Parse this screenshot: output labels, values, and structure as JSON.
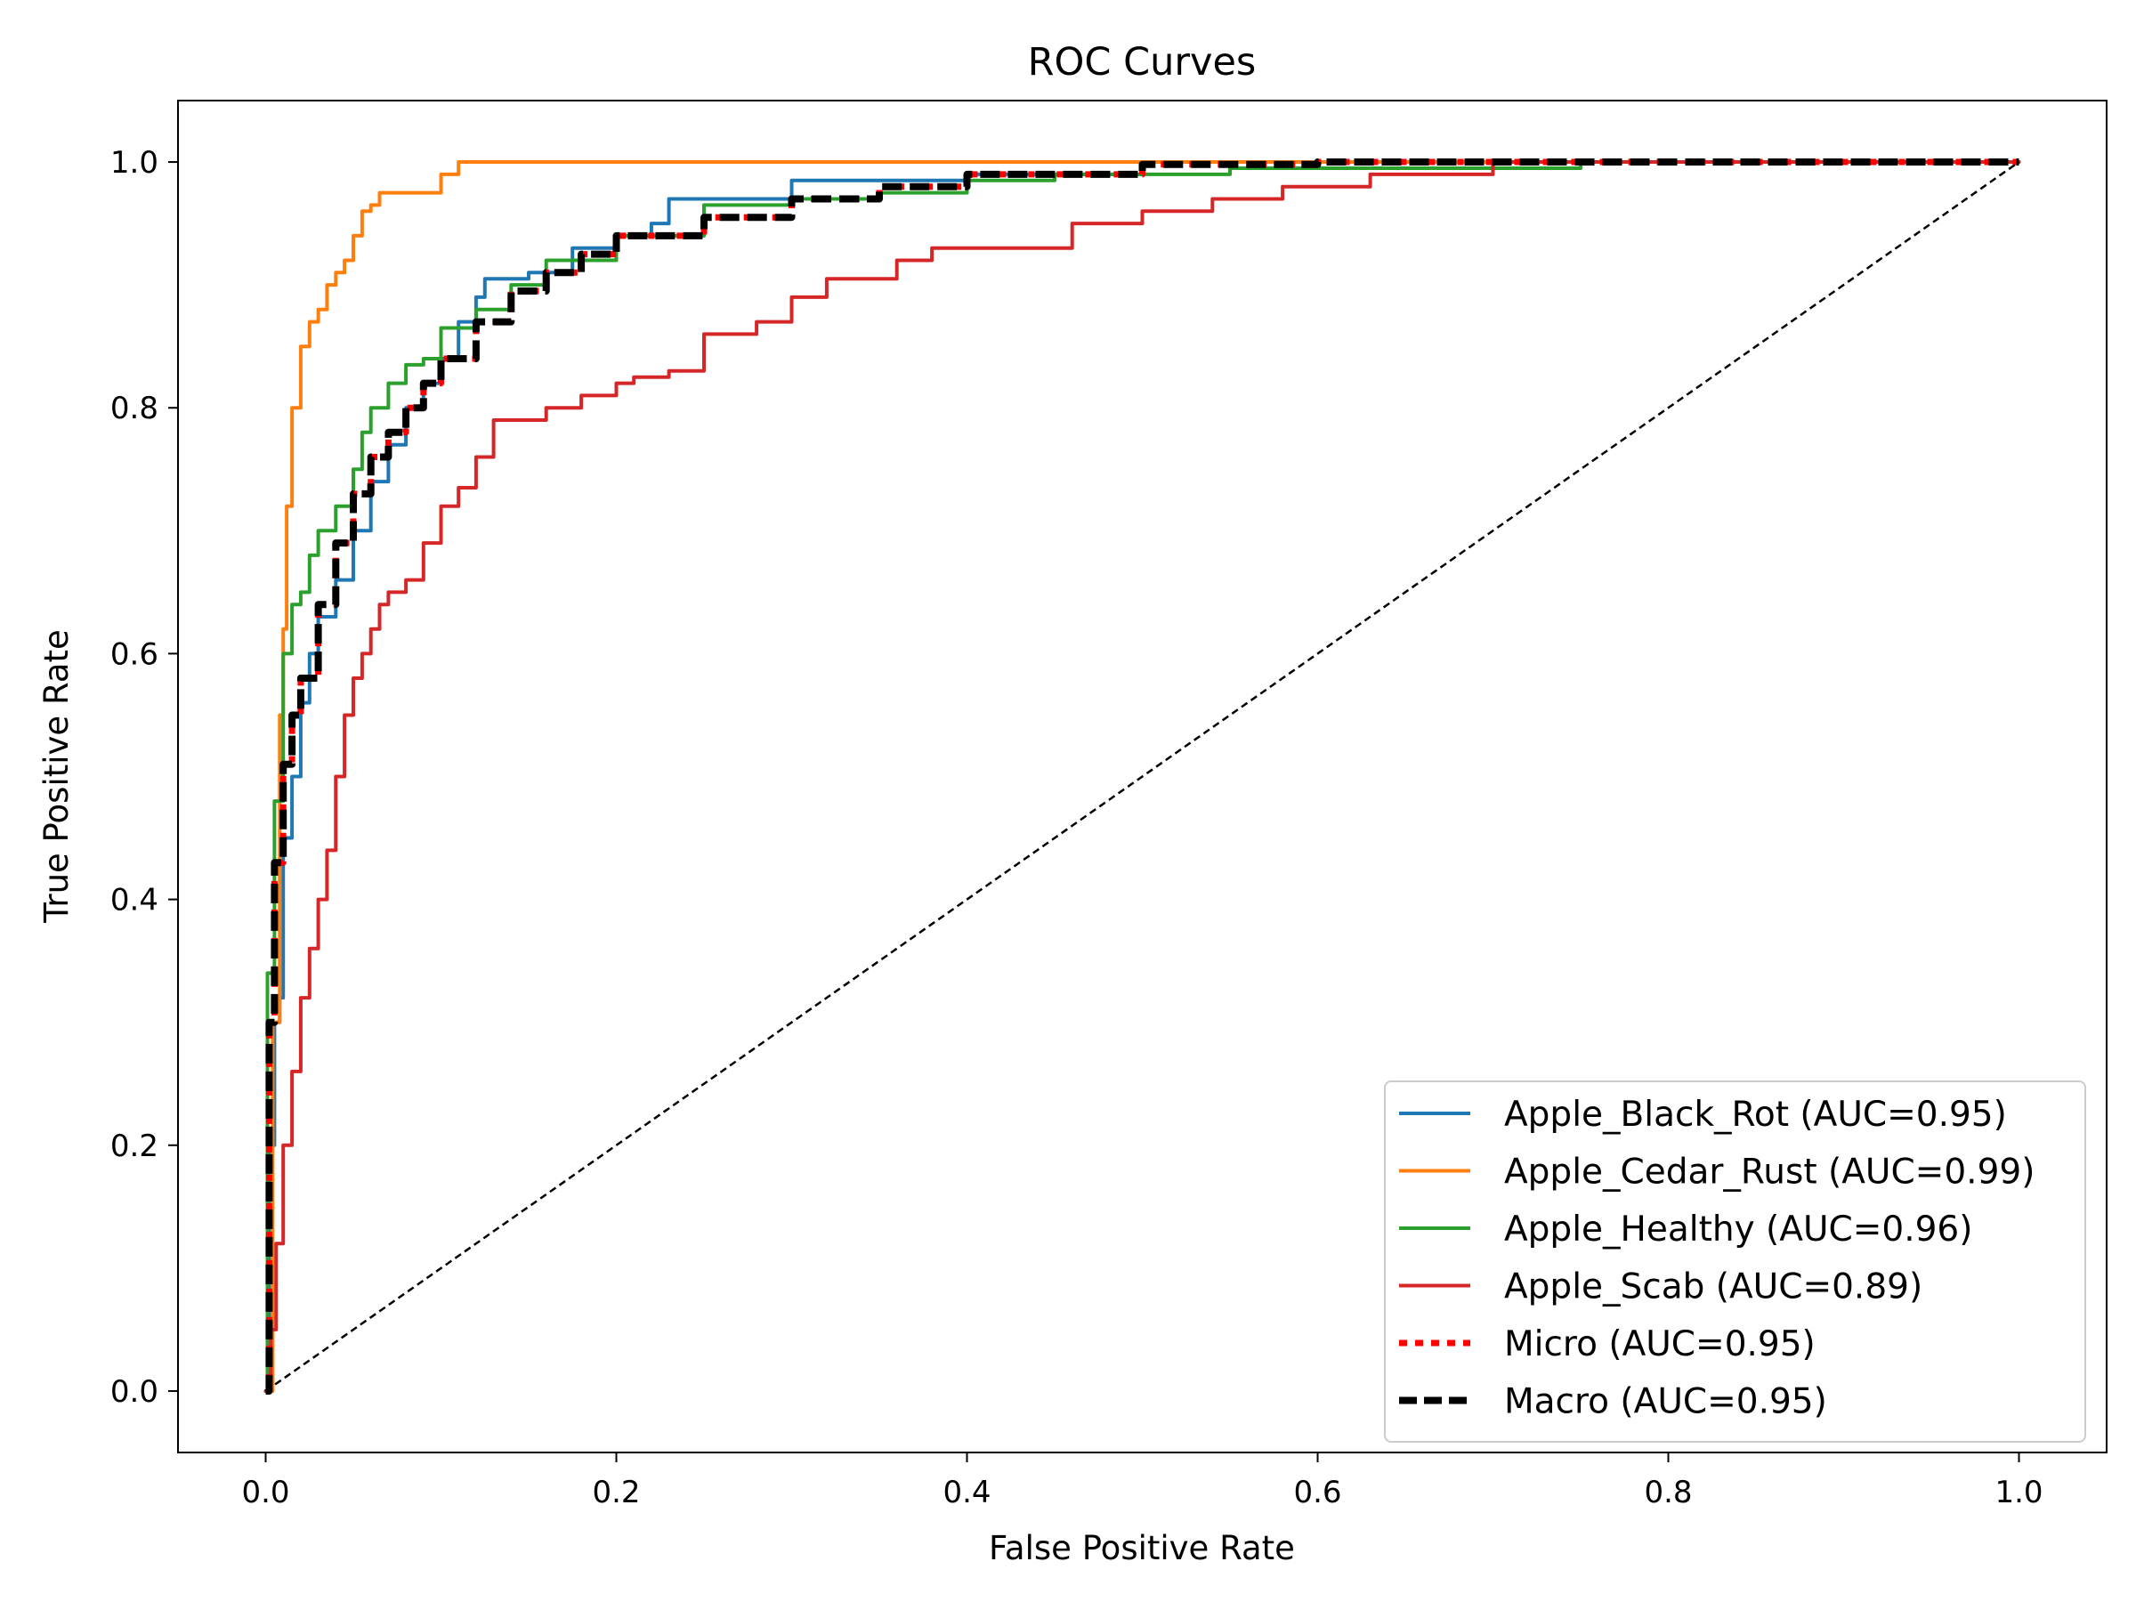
{
  "chart_data": {
    "type": "line",
    "title": "ROC Curves",
    "xlabel": "False Positive Rate",
    "ylabel": "True Positive Rate",
    "xlim": [
      -0.05,
      1.05
    ],
    "ylim": [
      -0.05,
      1.05
    ],
    "xticks": [
      "0.0",
      "0.2",
      "0.4",
      "0.6",
      "0.8",
      "1.0"
    ],
    "yticks": [
      "0.0",
      "0.2",
      "0.4",
      "0.6",
      "0.8",
      "1.0"
    ],
    "grid": false,
    "legend_position": "lower-right",
    "series": [
      {
        "name": "Apple_Black_Rot (AUC=0.95)",
        "color": "#1f77b4",
        "style": "solid",
        "x": [
          0,
          0.002,
          0.005,
          0.008,
          0.01,
          0.015,
          0.02,
          0.025,
          0.03,
          0.04,
          0.05,
          0.06,
          0.07,
          0.08,
          0.09,
          0.1,
          0.11,
          0.12,
          0.125,
          0.15,
          0.175,
          0.2,
          0.22,
          0.23,
          0.26,
          0.3,
          0.4,
          0.5,
          1.0
        ],
        "y": [
          0,
          0.2,
          0.3,
          0.32,
          0.45,
          0.5,
          0.56,
          0.6,
          0.63,
          0.66,
          0.7,
          0.74,
          0.77,
          0.8,
          0.82,
          0.84,
          0.87,
          0.89,
          0.905,
          0.91,
          0.93,
          0.94,
          0.95,
          0.97,
          0.97,
          0.985,
          0.99,
          1.0,
          1.0
        ]
      },
      {
        "name": "Apple_Cedar_Rust (AUC=0.99)",
        "color": "#ff7f0e",
        "style": "solid",
        "x": [
          0,
          0.004,
          0.008,
          0.01,
          0.012,
          0.015,
          0.02,
          0.025,
          0.03,
          0.035,
          0.04,
          0.045,
          0.05,
          0.055,
          0.06,
          0.065,
          0.07,
          0.08,
          0.09,
          0.1,
          0.11,
          0.2,
          1.0
        ],
        "y": [
          0,
          0.3,
          0.55,
          0.62,
          0.72,
          0.8,
          0.85,
          0.87,
          0.88,
          0.9,
          0.91,
          0.92,
          0.94,
          0.96,
          0.965,
          0.975,
          0.975,
          0.975,
          0.975,
          0.99,
          1.0,
          1.0,
          1.0
        ]
      },
      {
        "name": "Apple_Healthy (AUC=0.96)",
        "color": "#2ca02c",
        "style": "solid",
        "x": [
          0,
          0.001,
          0.005,
          0.01,
          0.015,
          0.02,
          0.025,
          0.03,
          0.04,
          0.05,
          0.055,
          0.06,
          0.07,
          0.08,
          0.09,
          0.1,
          0.12,
          0.14,
          0.16,
          0.2,
          0.25,
          0.3,
          0.35,
          0.4,
          0.45,
          0.55,
          0.75,
          0.8,
          1.0
        ],
        "y": [
          0,
          0.34,
          0.48,
          0.6,
          0.64,
          0.65,
          0.68,
          0.7,
          0.72,
          0.75,
          0.78,
          0.8,
          0.82,
          0.835,
          0.84,
          0.865,
          0.88,
          0.9,
          0.92,
          0.94,
          0.965,
          0.97,
          0.975,
          0.985,
          0.99,
          0.995,
          1.0,
          1.0,
          1.0
        ]
      },
      {
        "name": "Apple_Scab (AUC=0.89)",
        "color": "#d62728",
        "style": "solid",
        "x": [
          0,
          0.003,
          0.006,
          0.01,
          0.015,
          0.02,
          0.025,
          0.03,
          0.035,
          0.04,
          0.045,
          0.05,
          0.055,
          0.06,
          0.065,
          0.07,
          0.08,
          0.09,
          0.1,
          0.11,
          0.12,
          0.13,
          0.14,
          0.15,
          0.16,
          0.17,
          0.18,
          0.2,
          0.21,
          0.23,
          0.25,
          0.26,
          0.28,
          0.3,
          0.32,
          0.34,
          0.36,
          0.38,
          0.4,
          0.44,
          0.46,
          0.5,
          0.54,
          0.58,
          0.63,
          0.7,
          1.0
        ],
        "y": [
          0,
          0.05,
          0.12,
          0.2,
          0.26,
          0.32,
          0.36,
          0.4,
          0.44,
          0.5,
          0.55,
          0.58,
          0.6,
          0.62,
          0.64,
          0.65,
          0.66,
          0.69,
          0.72,
          0.735,
          0.76,
          0.79,
          0.79,
          0.79,
          0.8,
          0.8,
          0.81,
          0.82,
          0.825,
          0.83,
          0.86,
          0.86,
          0.87,
          0.89,
          0.905,
          0.905,
          0.92,
          0.93,
          0.93,
          0.93,
          0.95,
          0.96,
          0.97,
          0.98,
          0.99,
          1.0,
          1.0
        ]
      },
      {
        "name": "Micro (AUC=0.95)",
        "color": "#ff0000",
        "style": "dotted",
        "x": [
          0,
          0.002,
          0.005,
          0.01,
          0.015,
          0.02,
          0.03,
          0.04,
          0.05,
          0.06,
          0.07,
          0.08,
          0.09,
          0.1,
          0.12,
          0.14,
          0.16,
          0.18,
          0.2,
          0.25,
          0.3,
          0.35,
          0.4,
          0.5,
          0.6,
          0.7,
          1.0
        ],
        "y": [
          0,
          0.3,
          0.43,
          0.51,
          0.55,
          0.58,
          0.64,
          0.69,
          0.73,
          0.76,
          0.78,
          0.8,
          0.82,
          0.84,
          0.87,
          0.895,
          0.91,
          0.925,
          0.94,
          0.955,
          0.97,
          0.98,
          0.99,
          0.998,
          1.0,
          1.0,
          1.0
        ]
      },
      {
        "name": "Macro (AUC=0.95)",
        "color": "#000000",
        "style": "dashed",
        "x": [
          0,
          0.002,
          0.005,
          0.01,
          0.015,
          0.02,
          0.03,
          0.04,
          0.05,
          0.06,
          0.07,
          0.08,
          0.09,
          0.1,
          0.12,
          0.14,
          0.16,
          0.18,
          0.2,
          0.25,
          0.3,
          0.35,
          0.4,
          0.5,
          0.6,
          0.7,
          1.0
        ],
        "y": [
          0,
          0.3,
          0.43,
          0.51,
          0.55,
          0.58,
          0.64,
          0.69,
          0.73,
          0.76,
          0.78,
          0.8,
          0.82,
          0.84,
          0.87,
          0.895,
          0.91,
          0.925,
          0.94,
          0.955,
          0.97,
          0.98,
          0.99,
          0.998,
          1.0,
          1.0,
          1.0
        ]
      },
      {
        "name": "",
        "color": "#000000",
        "style": "thin-dashed",
        "x": [
          0,
          1
        ],
        "y": [
          0,
          1
        ]
      }
    ]
  }
}
